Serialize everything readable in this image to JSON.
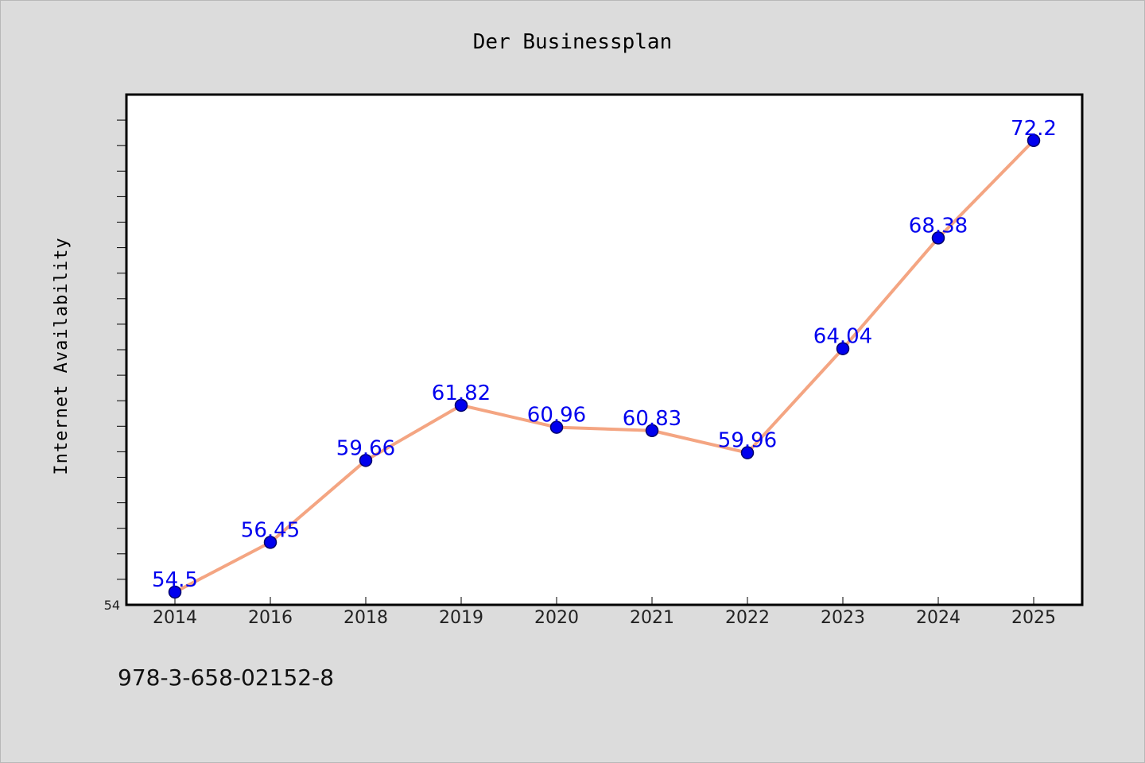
{
  "chart_data": {
    "type": "line",
    "title": "Der Businessplan",
    "xlabel": "",
    "ylabel": "Internet Availability",
    "categories": [
      "2014",
      "2016",
      "2018",
      "2019",
      "2020",
      "2021",
      "2022",
      "2023",
      "2024",
      "2025"
    ],
    "series": [
      {
        "values": [
          54.5,
          56.45,
          59.66,
          61.82,
          60.96,
          60.83,
          59.96,
          64.04,
          68.38,
          72.2
        ],
        "labels": [
          "54.5",
          "56.45",
          "59.66",
          "61.82",
          "60.96",
          "60.83",
          "59.96",
          "64.04",
          "68.38",
          "72.2"
        ]
      }
    ],
    "y_tick_labels": [
      {
        "value": 54,
        "label": "54"
      }
    ],
    "ylim": [
      54,
      74
    ],
    "grid": false,
    "colors": {
      "line": "#f4a582",
      "marker": "#0000ee",
      "label": "#0000ee",
      "background": "#dcdcdc",
      "plot_background": "#ffffff"
    }
  },
  "footer": {
    "isbn": "978-3-658-02152-8"
  }
}
